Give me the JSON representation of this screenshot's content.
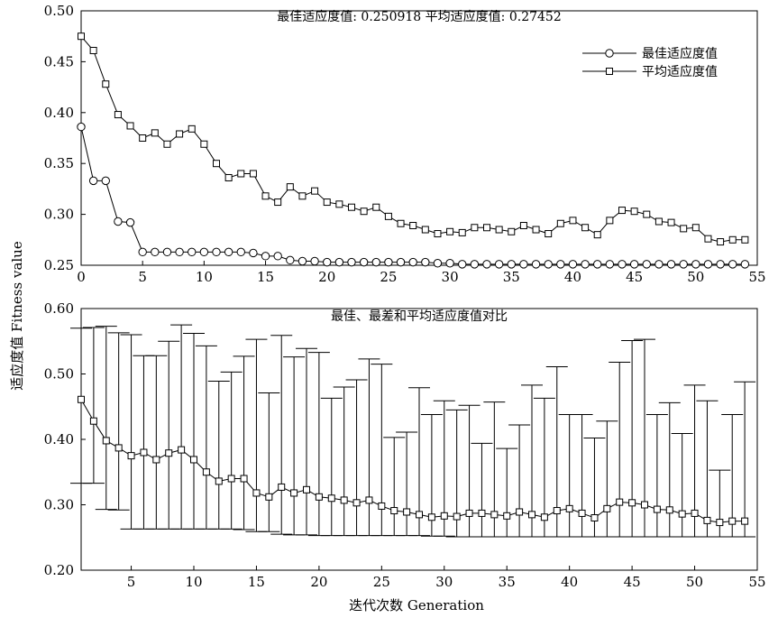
{
  "chart_data": [
    {
      "type": "line",
      "title": "最佳适应度值: 0.250918      平均适应度值: 0.27452",
      "xlim": [
        0,
        55
      ],
      "ylim": [
        0.25,
        0.5
      ],
      "xticks": [
        0,
        5,
        10,
        15,
        20,
        25,
        30,
        35,
        40,
        45,
        50,
        55
      ],
      "yticks": [
        0.25,
        0.3,
        0.35,
        0.4,
        0.45,
        0.5
      ],
      "xtick_labels": [
        "0",
        "5",
        "10",
        "15",
        "20",
        "25",
        "30",
        "35",
        "40",
        "45",
        "50",
        "55"
      ],
      "ytick_labels": [
        "0.25",
        "0.30",
        "0.35",
        "0.40",
        "0.45",
        "0.50"
      ],
      "legend_position": "top-right",
      "x": [
        0,
        1,
        2,
        3,
        4,
        5,
        6,
        7,
        8,
        9,
        10,
        11,
        12,
        13,
        14,
        15,
        16,
        17,
        18,
        19,
        20,
        21,
        22,
        23,
        24,
        25,
        26,
        27,
        28,
        29,
        30,
        31,
        32,
        33,
        34,
        35,
        36,
        37,
        38,
        39,
        40,
        41,
        42,
        43,
        44,
        45,
        46,
        47,
        48,
        49,
        50,
        51,
        52,
        53,
        54
      ],
      "series": [
        {
          "name": "最佳适应度值",
          "marker": "circle",
          "values": [
            0.386,
            0.333,
            0.333,
            0.293,
            0.292,
            0.263,
            0.263,
            0.263,
            0.263,
            0.263,
            0.263,
            0.263,
            0.263,
            0.263,
            0.262,
            0.259,
            0.259,
            0.255,
            0.254,
            0.254,
            0.253,
            0.253,
            0.253,
            0.253,
            0.253,
            0.253,
            0.253,
            0.253,
            0.253,
            0.252,
            0.252,
            0.251,
            0.251,
            0.251,
            0.251,
            0.251,
            0.251,
            0.251,
            0.251,
            0.251,
            0.251,
            0.251,
            0.251,
            0.251,
            0.251,
            0.251,
            0.251,
            0.251,
            0.251,
            0.251,
            0.251,
            0.251,
            0.251,
            0.251,
            0.251
          ]
        },
        {
          "name": "平均适应度值",
          "marker": "square",
          "values": [
            0.475,
            0.461,
            0.428,
            0.398,
            0.387,
            0.375,
            0.38,
            0.369,
            0.379,
            0.384,
            0.369,
            0.35,
            0.336,
            0.34,
            0.34,
            0.318,
            0.312,
            0.327,
            0.318,
            0.323,
            0.312,
            0.31,
            0.307,
            0.303,
            0.307,
            0.298,
            0.291,
            0.289,
            0.285,
            0.281,
            0.283,
            0.282,
            0.287,
            0.287,
            0.285,
            0.283,
            0.289,
            0.285,
            0.281,
            0.291,
            0.294,
            0.287,
            0.28,
            0.294,
            0.304,
            0.303,
            0.3,
            0.293,
            0.292,
            0.286,
            0.287,
            0.276,
            0.273,
            0.275,
            0.275
          ]
        }
      ]
    },
    {
      "type": "line",
      "title": "最佳、最差和平均适应度值对比",
      "xlim": [
        1,
        55
      ],
      "ylim": [
        0.2,
        0.6
      ],
      "xticks": [
        5,
        10,
        15,
        20,
        25,
        30,
        35,
        40,
        45,
        50,
        55
      ],
      "yticks": [
        0.2,
        0.3,
        0.4,
        0.5,
        0.6
      ],
      "xtick_labels": [
        "5",
        "10",
        "15",
        "20",
        "25",
        "30",
        "35",
        "40",
        "45",
        "50",
        "55"
      ],
      "ytick_labels": [
        "0.20",
        "0.30",
        "0.40",
        "0.50",
        "0.60"
      ],
      "xlabel": "迭代次数 Generation",
      "x": [
        1,
        2,
        3,
        4,
        5,
        6,
        7,
        8,
        9,
        10,
        11,
        12,
        13,
        14,
        15,
        16,
        17,
        18,
        19,
        20,
        21,
        22,
        23,
        24,
        25,
        26,
        27,
        28,
        29,
        30,
        31,
        32,
        33,
        34,
        35,
        36,
        37,
        38,
        39,
        40,
        41,
        42,
        43,
        44,
        45,
        46,
        47,
        48,
        49,
        50,
        51,
        52,
        53,
        54
      ],
      "series": [
        {
          "marker": "square",
          "values": [
            0.461,
            0.428,
            0.398,
            0.387,
            0.375,
            0.38,
            0.369,
            0.379,
            0.384,
            0.369,
            0.35,
            0.336,
            0.34,
            0.34,
            0.318,
            0.312,
            0.327,
            0.318,
            0.323,
            0.312,
            0.31,
            0.307,
            0.303,
            0.307,
            0.298,
            0.291,
            0.289,
            0.285,
            0.281,
            0.283,
            0.282,
            0.287,
            0.287,
            0.285,
            0.283,
            0.289,
            0.285,
            0.281,
            0.291,
            0.294,
            0.287,
            0.28,
            0.294,
            0.304,
            0.303,
            0.3,
            0.293,
            0.292,
            0.286,
            0.287,
            0.276,
            0.273,
            0.275,
            0.275
          ]
        }
      ],
      "error_bars": {
        "upper": [
          0.57,
          0.571,
          0.573,
          0.563,
          0.56,
          0.528,
          0.528,
          0.55,
          0.575,
          0.562,
          0.543,
          0.489,
          0.503,
          0.527,
          0.553,
          0.471,
          0.559,
          0.526,
          0.539,
          0.533,
          0.463,
          0.48,
          0.491,
          0.523,
          0.515,
          0.403,
          0.411,
          0.479,
          0.438,
          0.459,
          0.445,
          0.452,
          0.394,
          0.457,
          0.386,
          0.422,
          0.483,
          0.463,
          0.511,
          0.438,
          0.438,
          0.402,
          0.428,
          0.518,
          0.551,
          0.553,
          0.438,
          0.456,
          0.409,
          0.483,
          0.459,
          0.353,
          0.438,
          0.488
        ],
        "lower": [
          0.333,
          0.333,
          0.293,
          0.292,
          0.263,
          0.263,
          0.263,
          0.263,
          0.263,
          0.263,
          0.263,
          0.263,
          0.263,
          0.262,
          0.259,
          0.259,
          0.255,
          0.254,
          0.254,
          0.253,
          0.253,
          0.253,
          0.253,
          0.253,
          0.253,
          0.253,
          0.253,
          0.253,
          0.252,
          0.252,
          0.251,
          0.251,
          0.251,
          0.251,
          0.251,
          0.251,
          0.251,
          0.251,
          0.251,
          0.251,
          0.251,
          0.251,
          0.251,
          0.251,
          0.251,
          0.251,
          0.251,
          0.251,
          0.251,
          0.251,
          0.251,
          0.251,
          0.251,
          0.251
        ]
      }
    }
  ],
  "shared_ylabel": "适应度值 Fitness value",
  "colors": {
    "line": "#000000",
    "background": "#ffffff"
  }
}
